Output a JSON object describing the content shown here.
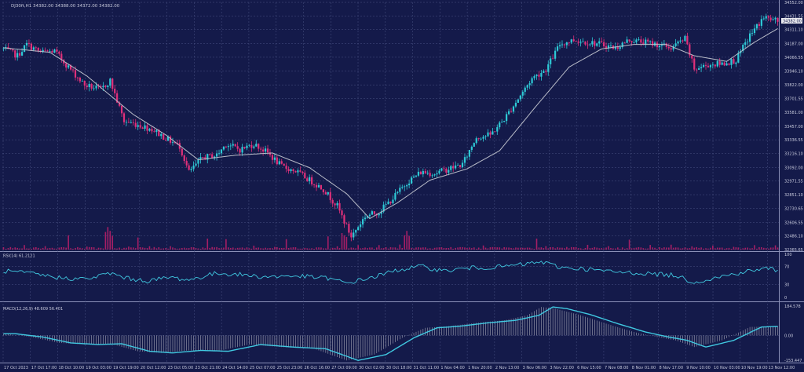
{
  "colors": {
    "background": "#141a4a",
    "grid": "#4a5284",
    "bull": "#2ec9d6",
    "bear": "#e0307a",
    "ma": "#b9bcc8",
    "volume": "#c0206a",
    "rsi": "#40c8e0",
    "macd_line": "#40c8e0",
    "macd_hist": "#c8c8d0",
    "axis_text": "#c8cadc",
    "price_tag": "#e8e8ee"
  },
  "chart_data": [
    {
      "type": "candlestick",
      "title": "DJ30ft,H1  34382.00 34388.00 34372.00 34382.00",
      "symbol": "DJ30ft",
      "timeframe": "H1",
      "ohlc_header": [
        "34382.00",
        "34388.00",
        "34372.00",
        "34382.00"
      ],
      "last_price": "34382.00",
      "ylim": [
        32365.65,
        34552.0
      ],
      "y_ticks": [
        "34552.00",
        "34431.55",
        "34311.10",
        "34187.00",
        "34066.55",
        "33946.10",
        "33822.00",
        "33701.55",
        "33581.00",
        "33457.00",
        "33336.55",
        "33216.10",
        "33092.00",
        "32971.55",
        "32851.10",
        "32730.65",
        "32606.55",
        "32486.10",
        "32365.65"
      ],
      "x_ticks": [
        "17 Oct 2023",
        "17 Oct 17:00",
        "18 Oct 10:00",
        "19 Oct 03:00",
        "19 Oct 19:00",
        "20 Oct 12:00",
        "23 Oct 05:00",
        "23 Oct 21:00",
        "24 Oct 14:00",
        "25 Oct 07:00",
        "25 Oct 23:00",
        "26 Oct 16:00",
        "27 Oct 09:00",
        "30 Oct 02:00",
        "30 Oct 18:00",
        "31 Oct 11:00",
        "1 Nov 04:00",
        "1 Nov 20:00",
        "2 Nov 13:00",
        "3 Nov 06:00",
        "3 Nov 22:00",
        "6 Nov 15:00",
        "7 Nov 08:00",
        "8 Nov 01:00",
        "8 Nov 17:00",
        "9 Nov 10:00",
        "10 Nov 03:00",
        "10 Nov 19:00",
        "13 Nov 12:00"
      ],
      "close_anchors": [
        [
          0,
          34140
        ],
        [
          6,
          34080
        ],
        [
          10,
          34180
        ],
        [
          16,
          34110
        ],
        [
          22,
          34120
        ],
        [
          28,
          33980
        ],
        [
          35,
          33820
        ],
        [
          42,
          33780
        ],
        [
          46,
          33860
        ],
        [
          52,
          33500
        ],
        [
          58,
          33470
        ],
        [
          64,
          33430
        ],
        [
          70,
          33350
        ],
        [
          76,
          33280
        ],
        [
          80,
          33050
        ],
        [
          86,
          33180
        ],
        [
          92,
          33200
        ],
        [
          96,
          33300
        ],
        [
          102,
          33250
        ],
        [
          108,
          33300
        ],
        [
          114,
          33220
        ],
        [
          120,
          33100
        ],
        [
          126,
          33060
        ],
        [
          132,
          32980
        ],
        [
          138,
          32900
        ],
        [
          144,
          32750
        ],
        [
          150,
          32480
        ],
        [
          156,
          32660
        ],
        [
          162,
          32700
        ],
        [
          168,
          32820
        ],
        [
          174,
          32960
        ],
        [
          180,
          33050
        ],
        [
          186,
          33040
        ],
        [
          192,
          33080
        ],
        [
          198,
          33120
        ],
        [
          204,
          33360
        ],
        [
          210,
          33380
        ],
        [
          216,
          33520
        ],
        [
          222,
          33700
        ],
        [
          228,
          33880
        ],
        [
          234,
          33960
        ],
        [
          240,
          34180
        ],
        [
          246,
          34220
        ],
        [
          252,
          34200
        ],
        [
          258,
          34180
        ],
        [
          264,
          34150
        ],
        [
          270,
          34220
        ],
        [
          276,
          34200
        ],
        [
          282,
          34180
        ],
        [
          288,
          34150
        ],
        [
          294,
          34230
        ],
        [
          298,
          33960
        ],
        [
          304,
          34000
        ],
        [
          310,
          34010
        ],
        [
          316,
          34040
        ],
        [
          322,
          34260
        ],
        [
          328,
          34420
        ],
        [
          334,
          34382
        ]
      ],
      "moving_average_anchors": [
        [
          0,
          34150
        ],
        [
          20,
          34110
        ],
        [
          36,
          33900
        ],
        [
          56,
          33560
        ],
        [
          70,
          33380
        ],
        [
          84,
          33160
        ],
        [
          100,
          33200
        ],
        [
          116,
          33220
        ],
        [
          132,
          33090
        ],
        [
          148,
          32860
        ],
        [
          158,
          32640
        ],
        [
          170,
          32780
        ],
        [
          184,
          32980
        ],
        [
          200,
          33080
        ],
        [
          214,
          33240
        ],
        [
          230,
          33640
        ],
        [
          244,
          33980
        ],
        [
          258,
          34140
        ],
        [
          272,
          34180
        ],
        [
          286,
          34180
        ],
        [
          298,
          34080
        ],
        [
          312,
          34030
        ],
        [
          324,
          34200
        ],
        [
          334,
          34320
        ]
      ],
      "volume_spikes": [
        [
          28,
          2.6
        ],
        [
          44,
          3.2
        ],
        [
          45,
          4.1
        ],
        [
          46,
          3.4
        ],
        [
          47,
          2.5
        ],
        [
          58,
          2.2
        ],
        [
          88,
          2.0
        ],
        [
          96,
          1.9
        ],
        [
          122,
          1.9
        ],
        [
          140,
          2.4
        ],
        [
          146,
          3.0
        ],
        [
          147,
          2.6
        ],
        [
          148,
          2.3
        ],
        [
          173,
          2.6
        ],
        [
          174,
          3.4
        ],
        [
          175,
          2.5
        ],
        [
          230,
          2.0
        ],
        [
          270,
          1.8
        ]
      ]
    },
    {
      "type": "line",
      "title": "RSI(14) 61.2121",
      "name": "RSI(14)",
      "last_value": 61.2121,
      "ylim": [
        0,
        100
      ],
      "y_ticks": [
        "100",
        "70",
        "30",
        "0"
      ],
      "anchors": [
        [
          0,
          60
        ],
        [
          12,
          54
        ],
        [
          24,
          45
        ],
        [
          36,
          42
        ],
        [
          46,
          55
        ],
        [
          54,
          43
        ],
        [
          62,
          38
        ],
        [
          72,
          46
        ],
        [
          80,
          40
        ],
        [
          92,
          55
        ],
        [
          102,
          52
        ],
        [
          112,
          47
        ],
        [
          126,
          49
        ],
        [
          140,
          44
        ],
        [
          148,
          33
        ],
        [
          160,
          47
        ],
        [
          170,
          62
        ],
        [
          180,
          70
        ],
        [
          190,
          60
        ],
        [
          200,
          66
        ],
        [
          212,
          68
        ],
        [
          224,
          74
        ],
        [
          232,
          80
        ],
        [
          240,
          68
        ],
        [
          252,
          64
        ],
        [
          262,
          58
        ],
        [
          276,
          55
        ],
        [
          290,
          50
        ],
        [
          298,
          35
        ],
        [
          310,
          48
        ],
        [
          322,
          60
        ],
        [
          330,
          66
        ],
        [
          334,
          61
        ]
      ]
    },
    {
      "type": "bar",
      "title": "MACD(12,26,9) 48.609 56.401",
      "name": "MACD(12,26,9)",
      "values_header": [
        "48.609",
        "56.401"
      ],
      "ylim": [
        -153.447,
        184.578
      ],
      "y_ticks": [
        "184.578",
        "0.00",
        "-153.447"
      ],
      "anchors": [
        [
          0,
          10
        ],
        [
          12,
          -10
        ],
        [
          24,
          -45
        ],
        [
          36,
          -55
        ],
        [
          46,
          -50
        ],
        [
          58,
          -95
        ],
        [
          68,
          -105
        ],
        [
          80,
          -90
        ],
        [
          92,
          -95
        ],
        [
          106,
          -55
        ],
        [
          120,
          -70
        ],
        [
          134,
          -80
        ],
        [
          148,
          -150
        ],
        [
          160,
          -115
        ],
        [
          172,
          -15
        ],
        [
          182,
          45
        ],
        [
          192,
          55
        ],
        [
          204,
          75
        ],
        [
          216,
          90
        ],
        [
          226,
          120
        ],
        [
          232,
          170
        ],
        [
          238,
          160
        ],
        [
          248,
          125
        ],
        [
          260,
          70
        ],
        [
          272,
          20
        ],
        [
          282,
          -10
        ],
        [
          290,
          -30
        ],
        [
          298,
          -70
        ],
        [
          310,
          -30
        ],
        [
          322,
          50
        ],
        [
          334,
          56
        ]
      ]
    }
  ]
}
